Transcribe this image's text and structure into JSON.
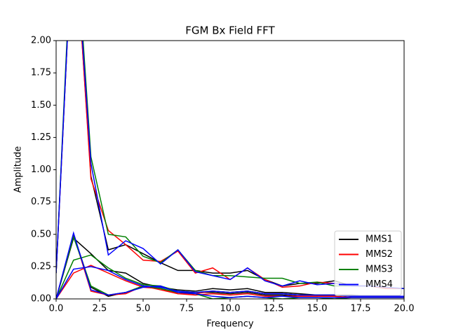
{
  "chart_data": {
    "type": "line",
    "title": "FGM Bx Field FFT",
    "x_label": "Frequency",
    "y_label": "Amplitude",
    "x": [
      0,
      1,
      2,
      3,
      4,
      5,
      6,
      7,
      8,
      9,
      10,
      11,
      12,
      13,
      14,
      15,
      16,
      17,
      18,
      19,
      20
    ],
    "xlim": [
      0,
      20
    ],
    "xticks": [
      {
        "value": 0,
        "label": "0.0"
      },
      {
        "value": 2.5,
        "label": "2.5"
      },
      {
        "value": 5,
        "label": "5.0"
      },
      {
        "value": 7.5,
        "label": "7.5"
      },
      {
        "value": 10,
        "label": "10.0"
      },
      {
        "value": 12.5,
        "label": "12.5"
      },
      {
        "value": 15,
        "label": "15.0"
      },
      {
        "value": 17.5,
        "label": "17.5"
      },
      {
        "value": 20,
        "label": "20.0"
      }
    ],
    "ylim": [
      0,
      2
    ],
    "yticks": [
      {
        "value": 0,
        "label": "0.00"
      },
      {
        "value": 0.25,
        "label": "0.25"
      },
      {
        "value": 0.5,
        "label": "0.50"
      },
      {
        "value": 0.75,
        "label": "0.75"
      },
      {
        "value": 1,
        "label": "1.00"
      },
      {
        "value": 1.25,
        "label": "1.25"
      },
      {
        "value": 1.5,
        "label": "1.50"
      },
      {
        "value": 1.75,
        "label": "1.75"
      },
      {
        "value": 2,
        "label": "2.00"
      }
    ],
    "legend": "lower right",
    "series": [
      {
        "name": "MMS1",
        "color": "#000000",
        "values": [
          [
            0.2,
            3.0,
            0.95,
            0.38,
            0.42,
            0.35,
            0.28,
            0.22,
            0.22,
            0.2,
            0.2,
            0.22,
            0.15,
            0.1,
            0.12,
            0.12,
            0.14,
            0.1,
            0.1,
            0.08,
            0.08
          ],
          [
            0.0,
            0.47,
            0.35,
            0.22,
            0.2,
            0.12,
            0.09,
            0.07,
            0.06,
            0.08,
            0.07,
            0.08,
            0.05,
            0.05,
            0.04,
            0.03,
            0.03,
            0.03,
            0.02,
            0.02,
            0.02
          ],
          [
            0.0,
            0.5,
            0.09,
            0.02,
            0.05,
            0.1,
            0.08,
            0.05,
            0.05,
            0.05,
            0.04,
            0.05,
            0.03,
            0.03,
            0.02,
            0.02,
            0.02,
            0.01,
            0.01,
            0.01,
            0.01
          ]
        ]
      },
      {
        "name": "MMS2",
        "color": "#ff0000",
        "values": [
          [
            0.2,
            3.0,
            0.93,
            0.53,
            0.42,
            0.3,
            0.29,
            0.37,
            0.2,
            0.24,
            0.15,
            0.24,
            0.15,
            0.09,
            0.1,
            0.13,
            0.12,
            0.1,
            0.1,
            0.08,
            0.08
          ],
          [
            0.0,
            0.2,
            0.26,
            0.2,
            0.14,
            0.09,
            0.08,
            0.04,
            0.04,
            0.06,
            0.05,
            0.06,
            0.04,
            0.04,
            0.03,
            0.03,
            0.03,
            0.02,
            0.02,
            0.02,
            0.02
          ],
          [
            0.0,
            0.5,
            0.06,
            0.03,
            0.04,
            0.1,
            0.07,
            0.04,
            0.03,
            0.04,
            0.03,
            0.04,
            0.02,
            0.02,
            0.02,
            0.02,
            0.02,
            0.01,
            0.01,
            0.01,
            0.01
          ]
        ]
      },
      {
        "name": "MMS3",
        "color": "#008000",
        "values": [
          [
            0.2,
            3.1,
            1.1,
            0.5,
            0.48,
            0.33,
            0.28,
            0.38,
            0.22,
            0.18,
            0.18,
            0.17,
            0.16,
            0.16,
            0.12,
            0.13,
            0.1,
            0.1,
            0.1,
            0.09,
            0.08
          ],
          [
            0.0,
            0.3,
            0.34,
            0.24,
            0.16,
            0.11,
            0.1,
            0.06,
            0.05,
            0.06,
            0.05,
            0.06,
            0.04,
            0.04,
            0.03,
            0.03,
            0.03,
            0.02,
            0.02,
            0.02,
            0.02
          ],
          [
            0.0,
            0.48,
            0.1,
            0.03,
            0.05,
            0.1,
            0.08,
            0.05,
            0.04,
            0.0,
            0.01,
            0.02,
            0.01,
            0.0,
            0.01,
            0.01,
            0.0,
            0.01,
            0.01,
            0.01,
            0.01
          ]
        ]
      },
      {
        "name": "MMS4",
        "color": "#0000ff",
        "values": [
          [
            0.2,
            3.0,
            1.05,
            0.34,
            0.45,
            0.39,
            0.27,
            0.38,
            0.21,
            0.18,
            0.15,
            0.24,
            0.14,
            0.1,
            0.14,
            0.11,
            0.12,
            0.1,
            0.1,
            0.09,
            0.08
          ],
          [
            0.0,
            0.23,
            0.25,
            0.22,
            0.15,
            0.1,
            0.09,
            0.06,
            0.05,
            0.06,
            0.05,
            0.06,
            0.04,
            0.04,
            0.03,
            0.03,
            0.03,
            0.02,
            0.02,
            0.02,
            0.02
          ],
          [
            0.0,
            0.51,
            0.07,
            0.03,
            0.05,
            0.09,
            0.1,
            0.05,
            0.04,
            0.02,
            0.01,
            0.02,
            0.01,
            0.02,
            0.01,
            0.01,
            0.01,
            0.01,
            0.01,
            0.01,
            0.01
          ]
        ]
      }
    ]
  }
}
